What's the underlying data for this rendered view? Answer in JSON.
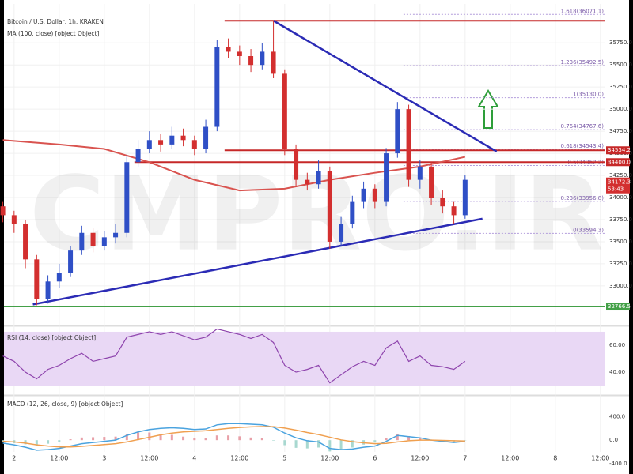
{
  "chart_data": [
    {
      "type": "candlestick",
      "title": "Bitcoin / U.S. Dollar, 1h, KRAKEN",
      "watermark": "CMPRO.IR",
      "up_color": "#2f4fc6",
      "down_color": "#d32f2f",
      "xlim": [
        -2.7,
        157.3
      ],
      "xticks": [
        {
          "value": 0,
          "label": "2"
        },
        {
          "value": 12,
          "label": "12:00"
        },
        {
          "value": 24,
          "label": "3"
        },
        {
          "value": 36,
          "label": "12:00"
        },
        {
          "value": 48,
          "label": "4"
        },
        {
          "value": 60,
          "label": "12:00"
        },
        {
          "value": 72,
          "label": "5"
        },
        {
          "value": 84,
          "label": "12:00"
        },
        {
          "value": 96,
          "label": "6"
        },
        {
          "value": 108,
          "label": "12:00"
        },
        {
          "value": 120,
          "label": "7"
        },
        {
          "value": 132,
          "label": "12:00"
        },
        {
          "value": 144,
          "label": "8"
        },
        {
          "value": 156,
          "label": "12:00"
        }
      ],
      "ylim": [
        32570,
        36190
      ],
      "yticks": [
        {
          "value": 33000,
          "label": "33000.0"
        },
        {
          "value": 33250,
          "label": "33250.0"
        },
        {
          "value": 33500,
          "label": "33500.0"
        },
        {
          "value": 33750,
          "label": "33750.0"
        },
        {
          "value": 34000,
          "label": "34000.0"
        },
        {
          "value": 34250,
          "label": "34250.0"
        },
        {
          "value": 34500,
          "label": "34500.0"
        },
        {
          "value": 34750,
          "label": "34750.0"
        },
        {
          "value": 35000,
          "label": "35000.0"
        },
        {
          "value": 35250,
          "label": "35250.0"
        },
        {
          "value": 35500,
          "label": "35500.0"
        },
        {
          "value": 35750,
          "label": "35750.0"
        }
      ],
      "x": [
        -3,
        0,
        3,
        6,
        9,
        12,
        15,
        18,
        21,
        24,
        27,
        30,
        33,
        36,
        39,
        42,
        45,
        48,
        51,
        54,
        57,
        60,
        63,
        66,
        69,
        72,
        75,
        78,
        81,
        84,
        87,
        90,
        93,
        96,
        99,
        102,
        105,
        108,
        111,
        114,
        117,
        120
      ],
      "open": [
        33900,
        33800,
        33700,
        33300,
        32850,
        33050,
        33150,
        33400,
        33600,
        33450,
        33550,
        33600,
        34400,
        34550,
        34650,
        34600,
        34700,
        34650,
        34550,
        34800,
        35700,
        35650,
        35600,
        35500,
        35650,
        35400,
        34550,
        34200,
        34150,
        34300,
        33500,
        33700,
        33950,
        34100,
        33950,
        34500,
        35000,
        34200,
        34350,
        34000,
        33900,
        33800
      ],
      "high": [
        33950,
        33850,
        33750,
        33350,
        33120,
        33250,
        33450,
        33680,
        33650,
        33620,
        33700,
        34480,
        34650,
        34750,
        34720,
        34800,
        34780,
        34700,
        34880,
        35780,
        35800,
        35720,
        35680,
        35750,
        36000,
        35450,
        34600,
        34280,
        34420,
        34350,
        33780,
        34020,
        34180,
        34150,
        34560,
        35080,
        35050,
        34420,
        34400,
        34080,
        33950,
        34250
      ],
      "low": [
        33720,
        33600,
        33200,
        32780,
        32800,
        32980,
        33100,
        33350,
        33380,
        33400,
        33480,
        33550,
        34350,
        34500,
        34520,
        34550,
        34580,
        34480,
        34500,
        34750,
        35580,
        35500,
        35420,
        35450,
        35350,
        34480,
        34120,
        34080,
        34100,
        33420,
        33450,
        33650,
        33880,
        33880,
        33900,
        34450,
        34120,
        34100,
        33920,
        33820,
        33700,
        33760
      ],
      "close": [
        33800,
        33700,
        33300,
        32850,
        33050,
        33150,
        33400,
        33600,
        33450,
        33550,
        33600,
        34400,
        34550,
        34650,
        34600,
        34700,
        34650,
        34550,
        34800,
        35700,
        35650,
        35600,
        35500,
        35650,
        35400,
        34550,
        34200,
        34150,
        34300,
        33500,
        33700,
        33950,
        34100,
        33950,
        34500,
        35000,
        34200,
        34350,
        34000,
        33900,
        33800,
        34200
      ],
      "ma": {
        "name": "MA (100, close) [object Object]",
        "color": "#d9534f",
        "x": [
          -3,
          12,
          24,
          36,
          48,
          60,
          72,
          84,
          96,
          108,
          120
        ],
        "values": [
          34650,
          34600,
          34550,
          34400,
          34200,
          34080,
          34100,
          34200,
          34280,
          34350,
          34460
        ]
      },
      "trendlines": [
        {
          "color": "#2b2bb5",
          "x": [
            69,
            128.4
          ],
          "values": [
            36000,
            34520
          ]
        },
        {
          "color": "#2b2bb5",
          "x": [
            5,
            124.6
          ],
          "values": [
            32790,
            33760
          ]
        }
      ],
      "levels": [
        {
          "value": 36000,
          "color": "#c62828",
          "from": 56
        },
        {
          "value": 34534.2,
          "color": "#c62828",
          "from": 56,
          "label": "34534.2"
        },
        {
          "value": 34400,
          "color": "#c62828",
          "from": 32,
          "label": "34400.0"
        },
        {
          "value": 32766.5,
          "color": "#43a047",
          "from": -2.7,
          "label": "32766.5"
        }
      ],
      "price": {
        "value": 34172.3,
        "label": "34172.3",
        "timer": "53:43",
        "color": "#d32f2f"
      },
      "fib_from": 103.6,
      "fib_levels": [
        {
          "value": 36071.1,
          "label": "1.618(36071.1)"
        },
        {
          "value": 35492.5,
          "label": "1.236(35492.5)"
        },
        {
          "value": 35130.0,
          "label": "1(35130.0)"
        },
        {
          "value": 34767.6,
          "label": "0.764(34767.6)"
        },
        {
          "value": 34543.4,
          "label": "0.618(34543.4)"
        },
        {
          "value": 34362.2,
          "label": "0.5(34362.2)"
        },
        {
          "value": 33956.8,
          "label": "0.236(33956.8)"
        },
        {
          "value": 33594.3,
          "label": "0(33594.3)"
        }
      ]
    },
    {
      "type": "line",
      "title": "RSI (14, close) [object Object]",
      "color": "#8e44ad",
      "band": [
        30,
        70
      ],
      "band_color": "#e9d8f5",
      "ylim": [
        26.5,
        73.5
      ],
      "yticks": [
        {
          "value": 60,
          "label": "60.00"
        },
        {
          "value": 40,
          "label": "40.00"
        }
      ],
      "x": [
        -3,
        0,
        3,
        6,
        9,
        12,
        15,
        18,
        21,
        24,
        27,
        30,
        33,
        36,
        39,
        42,
        45,
        48,
        51,
        54,
        57,
        60,
        63,
        66,
        69,
        72,
        75,
        78,
        81,
        84,
        87,
        90,
        93,
        96,
        99,
        102,
        105,
        108,
        111,
        114,
        117,
        120
      ],
      "values": [
        52,
        48,
        40,
        35,
        42,
        45,
        50,
        54,
        48,
        50,
        52,
        66,
        68,
        70,
        68,
        70,
        67,
        64,
        66,
        72,
        70,
        68,
        65,
        68,
        62,
        45,
        40,
        42,
        45,
        32,
        38,
        44,
        48,
        45,
        58,
        63,
        48,
        52,
        45,
        44,
        42,
        48
      ]
    },
    {
      "type": "macd",
      "title": "MACD (12, 26, close, 9) [object Object]",
      "ylim": [
        -400,
        700
      ],
      "yticks": [
        {
          "value": 400,
          "label": "400.0"
        },
        {
          "value": 0,
          "label": "0.0"
        },
        {
          "value": -400,
          "label": "-400.0"
        }
      ],
      "x": [
        -3,
        0,
        3,
        6,
        9,
        12,
        15,
        18,
        21,
        24,
        27,
        30,
        33,
        36,
        39,
        42,
        45,
        48,
        51,
        54,
        57,
        60,
        63,
        66,
        69,
        72,
        75,
        78,
        81,
        84,
        87,
        90,
        93,
        96,
        99,
        102,
        105,
        108,
        111,
        114,
        117,
        120
      ],
      "series": [
        {
          "color": "#4aa3df",
          "values": [
            -50,
            -80,
            -120,
            -170,
            -160,
            -140,
            -100,
            -60,
            -40,
            -20,
            0,
            80,
            140,
            180,
            200,
            210,
            200,
            180,
            190,
            260,
            280,
            280,
            270,
            260,
            220,
            120,
            40,
            -10,
            -30,
            -140,
            -160,
            -150,
            -120,
            -100,
            -20,
            80,
            60,
            40,
            0,
            -20,
            -40,
            -20
          ]
        },
        {
          "color": "#f0a050",
          "values": [
            -20,
            -30,
            -50,
            -80,
            -100,
            -115,
            -115,
            -105,
            -90,
            -75,
            -60,
            -30,
            10,
            50,
            90,
            120,
            140,
            150,
            160,
            180,
            200,
            215,
            225,
            230,
            228,
            205,
            170,
            130,
            95,
            50,
            5,
            -25,
            -45,
            -60,
            -55,
            -30,
            -10,
            0,
            0,
            -5,
            -10,
            -15
          ]
        }
      ],
      "histogram": {
        "up_color": "#e8a0a8",
        "down_color": "#a8d8d0",
        "values": [
          -30,
          -50,
          -70,
          -90,
          -60,
          -25,
          15,
          45,
          50,
          55,
          60,
          110,
          130,
          130,
          110,
          90,
          60,
          30,
          30,
          80,
          80,
          65,
          45,
          30,
          -8,
          -85,
          -130,
          -140,
          -125,
          -190,
          -165,
          -125,
          -75,
          -40,
          35,
          110,
          70,
          40,
          0,
          -15,
          -30,
          -5
        ]
      }
    }
  ]
}
